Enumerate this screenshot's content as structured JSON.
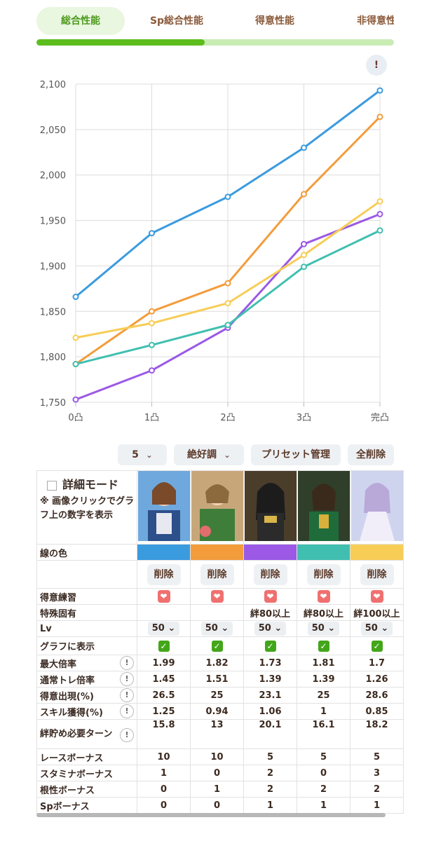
{
  "tabs": [
    "総合性能",
    "Sp総合性能",
    "得意性能",
    "非得意性能"
  ],
  "active_tab": 0,
  "progress": 0.47,
  "info_button": "!",
  "chart_data": {
    "type": "line",
    "categories": [
      "0凸",
      "1凸",
      "2凸",
      "3凸",
      "完凸"
    ],
    "ylim": [
      1750,
      2100
    ],
    "yticks": [
      "1,750",
      "1,800",
      "1,850",
      "1,900",
      "1,950",
      "2,000",
      "2,050",
      "2,100"
    ],
    "ytick_values": [
      1750,
      1800,
      1850,
      1900,
      1950,
      2000,
      2050,
      2100
    ],
    "grid": true,
    "series": [
      {
        "color": "#3b9bdf",
        "values": [
          1866,
          1936,
          1976,
          2030,
          2093
        ]
      },
      {
        "color": "#f39c3c",
        "values": [
          1792,
          1850,
          1881,
          1979,
          2064
        ]
      },
      {
        "color": "#9b59e6",
        "values": [
          1753,
          1785,
          1832,
          1924,
          1957
        ]
      },
      {
        "color": "#40bfb0",
        "values": [
          1792,
          1813,
          1835,
          1899,
          1939
        ]
      },
      {
        "color": "#f7cd56",
        "values": [
          1821,
          1837,
          1859,
          1912,
          1971
        ]
      }
    ]
  },
  "controls": {
    "count": "5",
    "condition": "絶好調",
    "preset": "プリセット管理",
    "delete_all": "全削除"
  },
  "detail_mode": {
    "label": "詳細モード",
    "note": "※ 画像クリックでグラフ上の数字を表示"
  },
  "cards": [
    {
      "color": "#3b9bdf",
      "unique": "",
      "lv": "50"
    },
    {
      "color": "#f39c3c",
      "unique": "",
      "lv": "50"
    },
    {
      "color": "#9b59e6",
      "unique": "絆80以上",
      "lv": "50"
    },
    {
      "color": "#40bfb0",
      "unique": "絆80以上",
      "lv": "50"
    },
    {
      "color": "#f7cd56",
      "unique": "絆100以上",
      "lv": "50"
    }
  ],
  "delete_label": "削除",
  "rows": {
    "line_color": "線の色",
    "training": "得意練習",
    "unique": "特殊固有",
    "lv": "Lv",
    "show_in_graph": "グラフに表示"
  },
  "stats": [
    {
      "label": "最大倍率",
      "q": true,
      "values": [
        "1.99",
        "1.82",
        "1.73",
        "1.81",
        "1.7"
      ]
    },
    {
      "label": "通常トレ倍率",
      "q": true,
      "values": [
        "1.45",
        "1.51",
        "1.39",
        "1.39",
        "1.26"
      ]
    },
    {
      "label": "得意出現(%)",
      "q": true,
      "values": [
        "26.5",
        "25",
        "23.1",
        "25",
        "28.6"
      ]
    },
    {
      "label": "スキル獲得(%)",
      "q": true,
      "values": [
        "1.25",
        "0.94",
        "1.06",
        "1",
        "0.85"
      ]
    },
    {
      "label": "絆貯め必要ターン",
      "q": true,
      "values": [
        "15.8",
        "13",
        "20.1",
        "16.1",
        "18.2"
      ]
    },
    {
      "label": "レースボーナス",
      "q": false,
      "values": [
        "10",
        "10",
        "5",
        "5",
        "5"
      ]
    },
    {
      "label": "スタミナボーナス",
      "q": false,
      "values": [
        "1",
        "0",
        "2",
        "0",
        "3"
      ]
    },
    {
      "label": "根性ボーナス",
      "q": false,
      "values": [
        "0",
        "1",
        "2",
        "2",
        "2"
      ]
    },
    {
      "label": "Spボーナス",
      "q": false,
      "values": [
        "0",
        "0",
        "1",
        "1",
        "1"
      ]
    }
  ]
}
